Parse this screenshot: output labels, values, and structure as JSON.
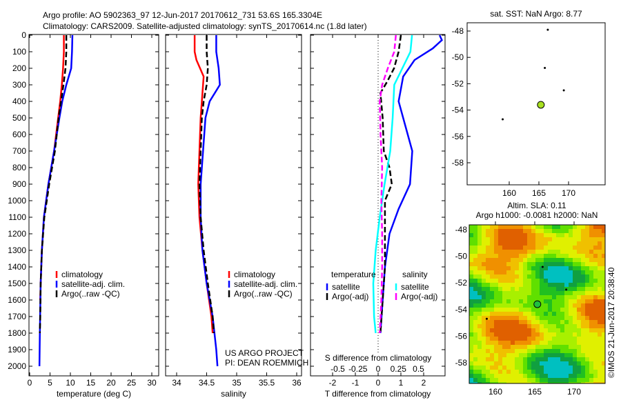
{
  "title_line1": "Argo profile: AO 5902363_97 12-Jun-2017 20170612_731 53.6S 165.3304E",
  "title_line2": "Climatology: CARS2009. Satellite-adjusted climatology: synTS_20170614.nc (1.8d later)",
  "colors": {
    "climatology": "#ff0000",
    "satellite": "#0000ff",
    "argo": "#000000",
    "s_satellite": "#00ffff",
    "s_argo": "#ff00ff"
  },
  "chart_data": [
    {
      "type": "line",
      "name": "temperature",
      "xlabel": "temperature (deg C)",
      "xlim": [
        -0.5,
        31
      ],
      "xticks": [
        "0",
        "5",
        "10",
        "15",
        "20",
        "25",
        "30"
      ],
      "ylim": [
        0,
        2080
      ],
      "yticks": [
        "0",
        "100",
        "200",
        "300",
        "400",
        "500",
        "600",
        "700",
        "800",
        "900",
        "1000",
        "1100",
        "1200",
        "1300",
        "1400",
        "1500",
        "1600",
        "1700",
        "1800",
        "1900",
        "2000"
      ],
      "legend": [
        "climatology",
        "satellite-adj. clim.",
        "Argo(..raw -QC)"
      ],
      "series": [
        {
          "name": "climatology",
          "depth": [
            0,
            100,
            200,
            300,
            400,
            500,
            700,
            900,
            1100,
            1300,
            1500,
            1600
          ],
          "values": [
            8.4,
            8.4,
            8.2,
            7.9,
            7.5,
            7.0,
            6.0,
            4.6,
            3.5,
            3.0,
            2.7,
            2.6
          ]
        },
        {
          "name": "satellite-adj. clim.",
          "depth": [
            0,
            100,
            200,
            300,
            400,
            500,
            700,
            900,
            1100,
            1300,
            1500,
            1800,
            2000
          ],
          "values": [
            10.5,
            10.4,
            10.2,
            9.0,
            8.0,
            7.3,
            6.0,
            4.6,
            3.5,
            3.0,
            2.7,
            2.5,
            2.4
          ]
        },
        {
          "name": "Argo(..raw -QC)",
          "depth": [
            0,
            100,
            200,
            300,
            400,
            500,
            700,
            900,
            1100,
            1300,
            1500,
            1700,
            1800
          ],
          "values": [
            9.0,
            9.0,
            8.8,
            8.3,
            7.7,
            7.1,
            6.2,
            4.8,
            3.6,
            3.0,
            2.7,
            2.6,
            2.5
          ]
        }
      ]
    },
    {
      "type": "line",
      "name": "salinity",
      "xlabel": "salinity",
      "xlim": [
        33.82,
        36.1
      ],
      "xticks": [
        "34",
        "34.5",
        "35",
        "35.5",
        "36"
      ],
      "ylim": [
        0,
        2080
      ],
      "legend": [
        "climatology",
        "satellite-adj. clim.",
        "Argo(..raw -QC)"
      ],
      "annotation": [
        "US ARGO PROJECT",
        "PI: DEAN ROEMMICH"
      ],
      "series": [
        {
          "name": "climatology",
          "depth": [
            0,
            100,
            150,
            250,
            350,
            500,
            700,
            900,
            1100,
            1300,
            1500,
            1700,
            1800
          ],
          "values": [
            34.3,
            34.3,
            34.33,
            34.45,
            34.43,
            34.4,
            34.38,
            34.36,
            34.38,
            34.43,
            34.5,
            34.58,
            34.6
          ]
        },
        {
          "name": "satellite-adj. clim.",
          "depth": [
            0,
            100,
            200,
            300,
            400,
            500,
            700,
            900,
            1100,
            1300,
            1500,
            1700,
            1900,
            2000
          ],
          "values": [
            34.66,
            34.66,
            34.7,
            34.72,
            34.55,
            34.48,
            34.44,
            34.4,
            34.4,
            34.43,
            34.5,
            34.6,
            34.66,
            34.68
          ]
        },
        {
          "name": "Argo(..raw -QC)",
          "depth": [
            0,
            100,
            200,
            300,
            400,
            500,
            700,
            900,
            1100,
            1300,
            1500,
            1700,
            1800
          ],
          "values": [
            34.5,
            34.5,
            34.52,
            34.5,
            34.45,
            34.42,
            34.4,
            34.38,
            34.4,
            34.45,
            34.52,
            34.6,
            34.62
          ]
        }
      ]
    },
    {
      "type": "line",
      "name": "difference",
      "xlabel": "T difference from climatology",
      "xlim": [
        -3,
        3
      ],
      "xticks": [
        "-2",
        "-1",
        "0",
        "1",
        "2"
      ],
      "x2label": "S difference from climatology",
      "x2ticks": [
        "-0.5",
        "-0.25",
        "0",
        "0.25",
        "0.5"
      ],
      "ylim": [
        0,
        2080
      ],
      "legend_headers": [
        "temperature",
        "salinity"
      ],
      "legend": [
        "satellite",
        "Argo(-adj)",
        "satellite",
        "Argo(-adj)"
      ],
      "series": [
        {
          "name": "T satellite",
          "axis": "T",
          "depth": [
            0,
            30,
            80,
            150,
            250,
            400,
            550,
            700,
            900,
            1050,
            1200,
            1400,
            1600,
            1800
          ],
          "values": [
            2.7,
            2.8,
            2.4,
            1.6,
            1.1,
            0.9,
            1.2,
            1.5,
            1.4,
            0.9,
            0.5,
            0.3,
            0.2,
            0.1
          ]
        },
        {
          "name": "T Argo(-adj)",
          "axis": "T",
          "depth": [
            0,
            100,
            200,
            280,
            350,
            500,
            700,
            800,
            900,
            1000,
            1200,
            1400,
            1600,
            1800
          ],
          "values": [
            1.0,
            0.9,
            0.7,
            0.4,
            0.1,
            0.2,
            0.25,
            0.5,
            0.6,
            0.3,
            0.3,
            0.3,
            0.2,
            0.1
          ]
        },
        {
          "name": "S satellite",
          "axis": "S",
          "depth": [
            0,
            100,
            200,
            300,
            500,
            700,
            900,
            1100,
            1300,
            1500,
            1700,
            1800
          ],
          "values": [
            0.42,
            0.4,
            0.3,
            0.2,
            0.18,
            0.15,
            0.08,
            0.02,
            -0.03,
            -0.06,
            -0.05,
            -0.03
          ]
        },
        {
          "name": "S Argo(-adj)",
          "axis": "S",
          "depth": [
            0,
            100,
            200,
            300,
            400,
            600,
            800,
            1000,
            1200,
            1400,
            1600,
            1800
          ],
          "values": [
            0.22,
            0.2,
            0.12,
            0.05,
            0.02,
            0.03,
            0.05,
            0.04,
            0.05,
            0.05,
            0.04,
            0.02
          ]
        }
      ]
    },
    {
      "type": "scatter",
      "name": "sst-map",
      "title": "sat. SST: NaN Argo: 8.77",
      "xticks": [
        "160",
        "165",
        "170"
      ],
      "yticks": [
        "-48",
        "-50",
        "-52",
        "-54",
        "-56",
        "-58"
      ],
      "points": [
        {
          "lon": 165.33,
          "lat": -53.6
        }
      ]
    },
    {
      "type": "heatmap",
      "name": "sla-map",
      "title1": "Altim. SLA: 0.11",
      "title2": "Argo h1000: -0.0081 h2000: NaN",
      "xticks": [
        "160",
        "165",
        "170"
      ],
      "yticks": [
        "-48",
        "-50",
        "-52",
        "-54",
        "-56",
        "-58"
      ],
      "credit": "©IMOS 21-Jun-2017 20:38:40",
      "points": [
        {
          "lon": 165.33,
          "lat": -53.6
        }
      ]
    }
  ]
}
